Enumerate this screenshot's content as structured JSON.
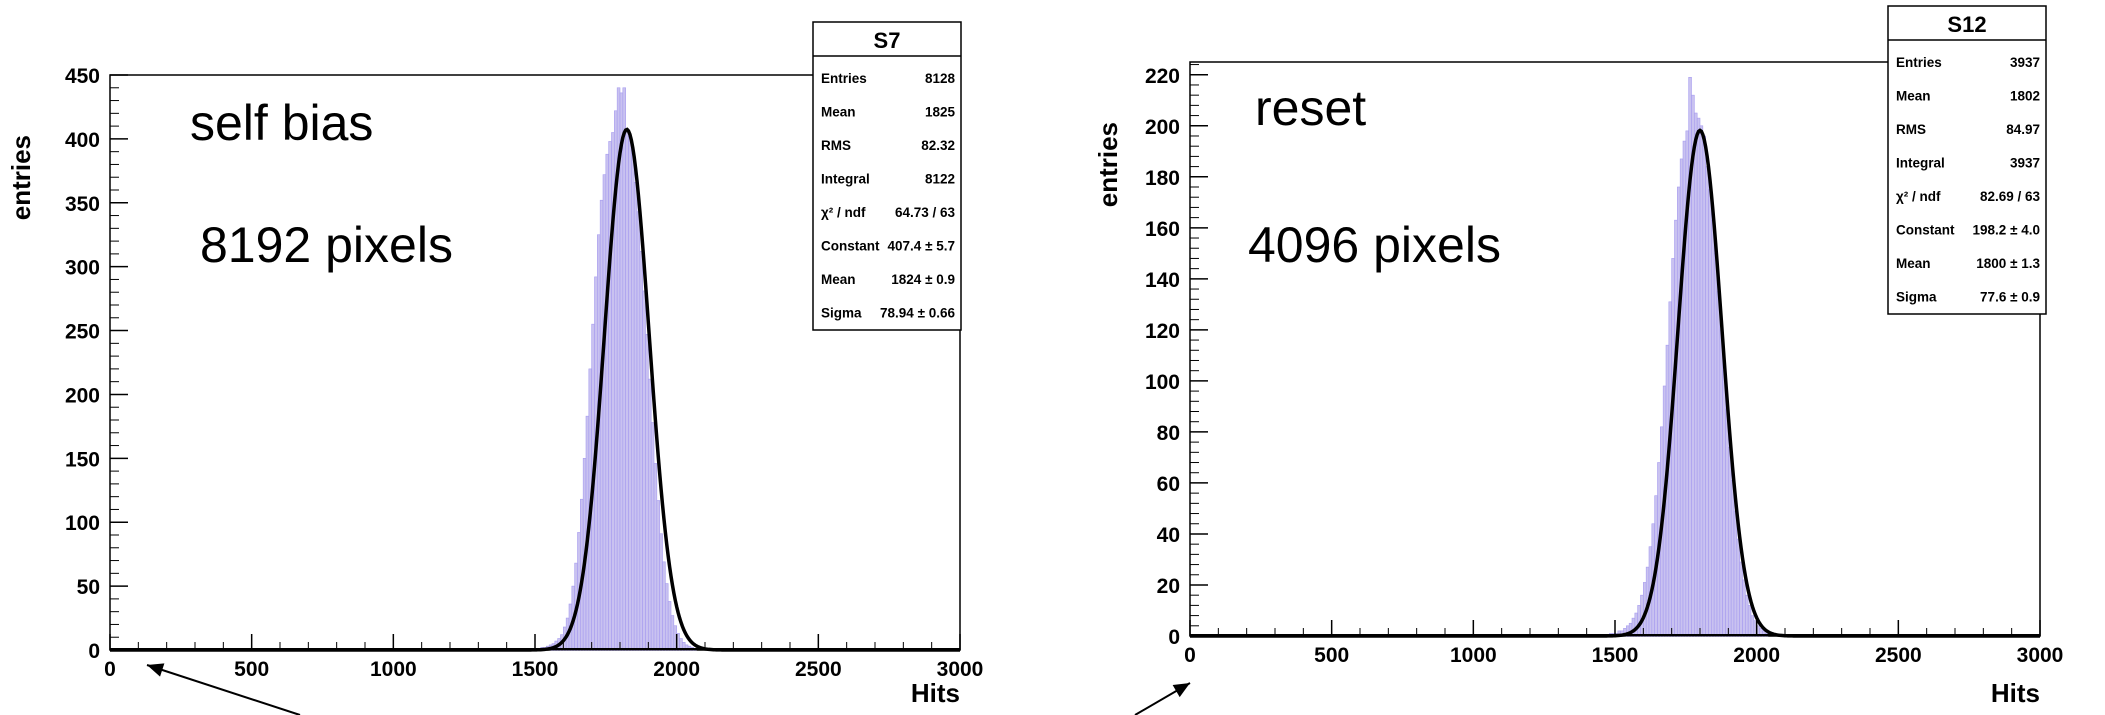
{
  "chart_data": [
    {
      "type": "bar",
      "title": "",
      "xlabel": "Hits",
      "ylabel": "entries",
      "xlim": [
        0,
        3000
      ],
      "ylim": [
        0,
        450
      ],
      "xticks": [
        0,
        500,
        1000,
        1500,
        2000,
        2500,
        3000
      ],
      "yticks": [
        0,
        50,
        100,
        150,
        200,
        250,
        300,
        350,
        400,
        450
      ],
      "grid": false,
      "annotations": [
        "self bias",
        "8192 pixels"
      ],
      "histogram": {
        "bin_width": 10,
        "bins": [
          [
            1500,
            1
          ],
          [
            1510,
            1
          ],
          [
            1520,
            2
          ],
          [
            1530,
            2
          ],
          [
            1540,
            3
          ],
          [
            1550,
            4
          ],
          [
            1560,
            5
          ],
          [
            1570,
            7
          ],
          [
            1580,
            9
          ],
          [
            1590,
            12
          ],
          [
            1600,
            18
          ],
          [
            1610,
            25
          ],
          [
            1620,
            36
          ],
          [
            1630,
            50
          ],
          [
            1640,
            68
          ],
          [
            1650,
            92
          ],
          [
            1660,
            118
          ],
          [
            1670,
            150
          ],
          [
            1680,
            183
          ],
          [
            1690,
            220
          ],
          [
            1700,
            255
          ],
          [
            1710,
            292
          ],
          [
            1720,
            325
          ],
          [
            1730,
            352
          ],
          [
            1740,
            372
          ],
          [
            1750,
            388
          ],
          [
            1760,
            398
          ],
          [
            1770,
            405
          ],
          [
            1780,
            422
          ],
          [
            1790,
            440
          ],
          [
            1800,
            436
          ],
          [
            1810,
            440
          ],
          [
            1820,
            408
          ],
          [
            1830,
            402
          ],
          [
            1840,
            389
          ],
          [
            1850,
            366
          ],
          [
            1860,
            343
          ],
          [
            1870,
            312
          ],
          [
            1880,
            281
          ],
          [
            1890,
            247
          ],
          [
            1900,
            212
          ],
          [
            1910,
            178
          ],
          [
            1920,
            146
          ],
          [
            1930,
            117
          ],
          [
            1940,
            91
          ],
          [
            1950,
            69
          ],
          [
            1960,
            52
          ],
          [
            1970,
            38
          ],
          [
            1980,
            27
          ],
          [
            1990,
            19
          ],
          [
            2000,
            13
          ],
          [
            2010,
            9
          ],
          [
            2020,
            6
          ],
          [
            2030,
            4
          ],
          [
            2040,
            3
          ],
          [
            2050,
            2
          ],
          [
            2060,
            1
          ]
        ]
      },
      "fit": {
        "function": "gaus",
        "constant": 407.4,
        "mean": 1824,
        "sigma": 78.94
      },
      "stats_box": {
        "title": "S7",
        "rows": [
          {
            "label": "Entries",
            "value": "8128"
          },
          {
            "label": "Mean",
            "value": "1825"
          },
          {
            "label": "RMS",
            "value": "82.32"
          },
          {
            "label": "Integral",
            "value": "8122"
          },
          {
            "label": "χ² / ndf",
            "value": "64.73 / 63"
          },
          {
            "label": "Constant",
            "value": "407.4 ± 5.7"
          },
          {
            "label": "Mean",
            "value": "1824 ± 0.9"
          },
          {
            "label": "Sigma",
            "value": "78.94 ± 0.66"
          }
        ]
      },
      "colors": {
        "fill": "#c9c2f0",
        "fill_line": "#a79cee",
        "fit": "#000000",
        "axis": "#000000"
      }
    },
    {
      "type": "bar",
      "title": "",
      "xlabel": "Hits",
      "ylabel": "entries",
      "xlim": [
        0,
        3000
      ],
      "ylim": [
        0,
        225
      ],
      "xticks": [
        0,
        500,
        1000,
        1500,
        2000,
        2500,
        3000
      ],
      "yticks": [
        0,
        20,
        40,
        60,
        80,
        100,
        120,
        140,
        160,
        180,
        200,
        220
      ],
      "grid": false,
      "annotations": [
        "reset",
        "4096 pixels"
      ],
      "histogram": {
        "bin_width": 10,
        "bins": [
          [
            1480,
            1
          ],
          [
            1490,
            1
          ],
          [
            1500,
            1
          ],
          [
            1510,
            2
          ],
          [
            1520,
            2
          ],
          [
            1530,
            3
          ],
          [
            1540,
            4
          ],
          [
            1550,
            5
          ],
          [
            1560,
            7
          ],
          [
            1570,
            9
          ],
          [
            1580,
            12
          ],
          [
            1590,
            16
          ],
          [
            1600,
            21
          ],
          [
            1610,
            27
          ],
          [
            1620,
            35
          ],
          [
            1630,
            44
          ],
          [
            1640,
            55
          ],
          [
            1650,
            68
          ],
          [
            1660,
            82
          ],
          [
            1670,
            98
          ],
          [
            1680,
            114
          ],
          [
            1690,
            131
          ],
          [
            1700,
            148
          ],
          [
            1710,
            163
          ],
          [
            1720,
            176
          ],
          [
            1730,
            187
          ],
          [
            1740,
            194
          ],
          [
            1750,
            198
          ],
          [
            1760,
            219
          ],
          [
            1770,
            212
          ],
          [
            1780,
            205
          ],
          [
            1790,
            203
          ],
          [
            1800,
            200
          ],
          [
            1810,
            196
          ],
          [
            1820,
            184
          ],
          [
            1830,
            175
          ],
          [
            1840,
            163
          ],
          [
            1850,
            150
          ],
          [
            1860,
            135
          ],
          [
            1870,
            120
          ],
          [
            1880,
            104
          ],
          [
            1890,
            89
          ],
          [
            1900,
            74
          ],
          [
            1910,
            61
          ],
          [
            1920,
            49
          ],
          [
            1930,
            38
          ],
          [
            1940,
            29
          ],
          [
            1950,
            22
          ],
          [
            1960,
            16
          ],
          [
            1970,
            12
          ],
          [
            1980,
            8
          ],
          [
            1990,
            6
          ],
          [
            2000,
            4
          ],
          [
            2010,
            3
          ],
          [
            2020,
            2
          ],
          [
            2030,
            1
          ]
        ]
      },
      "fit": {
        "function": "gaus",
        "constant": 198.2,
        "mean": 1800,
        "sigma": 77.6
      },
      "stats_box": {
        "title": "S12",
        "rows": [
          {
            "label": "Entries",
            "value": "3937"
          },
          {
            "label": "Mean",
            "value": "1802"
          },
          {
            "label": "RMS",
            "value": "84.97"
          },
          {
            "label": "Integral",
            "value": "3937"
          },
          {
            "label": "χ² / ndf",
            "value": "82.69 / 63"
          },
          {
            "label": "Constant",
            "value": "198.2 ± 4.0"
          },
          {
            "label": "Mean",
            "value": "1800 ± 1.3"
          },
          {
            "label": "Sigma",
            "value": "77.6 ± 0.9"
          }
        ]
      },
      "colors": {
        "fill": "#c9c2f0",
        "fill_line": "#a79cee",
        "fit": "#000000",
        "axis": "#000000"
      }
    }
  ]
}
